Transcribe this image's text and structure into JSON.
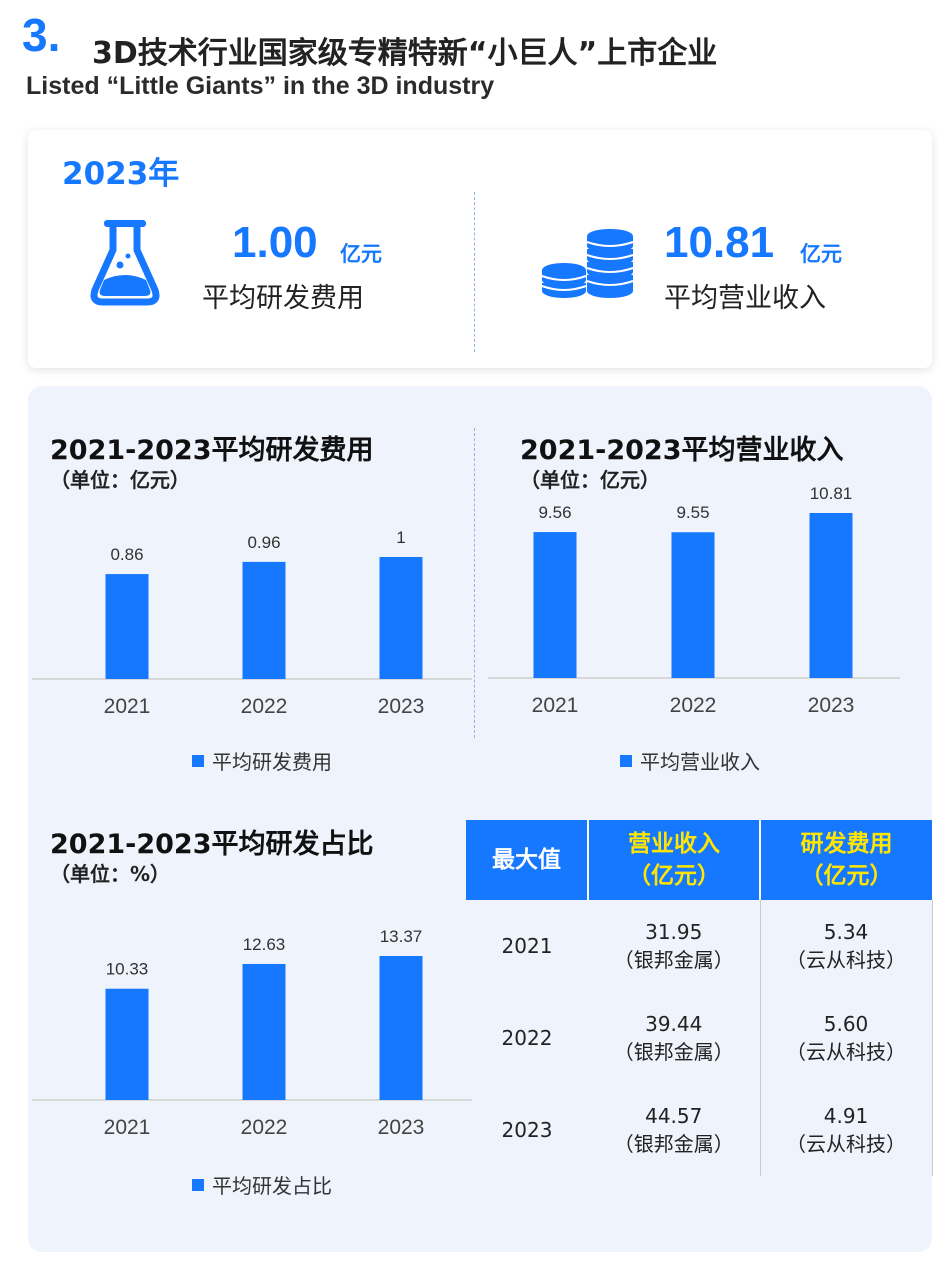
{
  "header": {
    "number": "3.",
    "title": "3D技术行业国家级专精特新“小巨人”上市企业",
    "subtitle": "Listed “Little Giants” in the 3D industry"
  },
  "summary": {
    "year": "2023年",
    "rd": {
      "value": "1.00",
      "unit": "亿元",
      "label": "平均研发费用",
      "icon": "flask-icon"
    },
    "revenue": {
      "value": "10.81",
      "unit": "亿元",
      "label": "平均营业收入",
      "icon": "coins-stack-icon"
    }
  },
  "chart_data": [
    {
      "type": "bar",
      "title": "2021-2023平均研发费用",
      "unit_label": "（单位：亿元）",
      "categories": [
        "2021",
        "2022",
        "2023"
      ],
      "series": [
        {
          "name": "平均研发费用",
          "values": [
            0.86,
            0.96,
            1
          ],
          "labels": [
            "0.86",
            "0.96",
            "1"
          ]
        }
      ],
      "color": "#1677ff"
    },
    {
      "type": "bar",
      "title": "2021-2023平均营业收入",
      "unit_label": "（单位：亿元）",
      "categories": [
        "2021",
        "2022",
        "2023"
      ],
      "series": [
        {
          "name": "平均营业收入",
          "values": [
            9.56,
            9.55,
            10.81
          ],
          "labels": [
            "9.56",
            "9.55",
            "10.81"
          ]
        }
      ],
      "color": "#1677ff"
    },
    {
      "type": "bar",
      "title": "2021-2023平均研发占比",
      "unit_label": "（单位：%）",
      "categories": [
        "2021",
        "2022",
        "2023"
      ],
      "series": [
        {
          "name": "平均研发占比",
          "values": [
            10.33,
            12.63,
            13.37
          ],
          "labels": [
            "10.33",
            "12.63",
            "13.37"
          ]
        }
      ],
      "color": "#1677ff"
    },
    {
      "type": "table",
      "columns": [
        "最大值",
        "营业收入（亿元）",
        "研发费用（亿元）"
      ],
      "rows": [
        {
          "year": "2021",
          "revenue": "31.95",
          "revenue_company": "（银邦金属）",
          "rd": "5.34",
          "rd_company": "（云从科技）"
        },
        {
          "year": "2022",
          "revenue": "39.44",
          "revenue_company": "（银邦金属）",
          "rd": "5.60",
          "rd_company": "（云从科技）"
        },
        {
          "year": "2023",
          "revenue": "44.57",
          "revenue_company": "（银邦金属）",
          "rd": "4.91",
          "rd_company": "（云从科技）"
        }
      ]
    }
  ],
  "table_header": {
    "col1": "最大值",
    "col2_line1": "营业收入",
    "col2_line2": "（亿元）",
    "col3_line1": "研发费用",
    "col3_line2": "（亿元）"
  },
  "colors": {
    "accent": "#1677ff",
    "highlight": "#ffe600",
    "panel_bg": "#eef3fc"
  }
}
